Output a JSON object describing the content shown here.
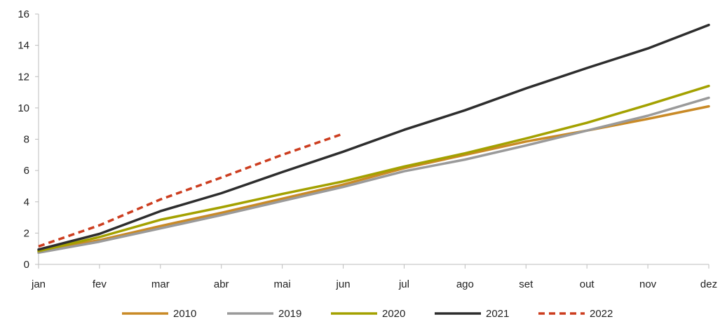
{
  "chart_data": {
    "type": "line",
    "title": "",
    "xlabel": "",
    "ylabel": "",
    "categories": [
      "jan",
      "fev",
      "mar",
      "abr",
      "mai",
      "jun",
      "jul",
      "ago",
      "set",
      "out",
      "nov",
      "dez"
    ],
    "ylim": [
      0,
      16
    ],
    "yticks": [
      "0",
      "2",
      "4",
      "6",
      "8",
      "10",
      "12",
      "14",
      "16"
    ],
    "grid": false,
    "legend_position": "bottom",
    "series": [
      {
        "name": "2010",
        "color": "#c98a26",
        "style": "solid",
        "values": [
          0.85,
          1.55,
          2.45,
          3.3,
          4.2,
          5.1,
          6.15,
          7.0,
          7.85,
          8.55,
          9.3,
          10.1
        ]
      },
      {
        "name": "2019",
        "color": "#9a9a9a",
        "style": "solid",
        "values": [
          0.75,
          1.45,
          2.3,
          3.15,
          4.05,
          4.95,
          5.95,
          6.7,
          7.6,
          8.55,
          9.5,
          10.65
        ]
      },
      {
        "name": "2020",
        "color": "#a3a100",
        "style": "solid",
        "values": [
          0.85,
          1.75,
          2.85,
          3.65,
          4.5,
          5.3,
          6.25,
          7.1,
          8.05,
          9.05,
          10.2,
          11.4
        ]
      },
      {
        "name": "2021",
        "color": "#2d2d2d",
        "style": "solid",
        "values": [
          0.95,
          1.95,
          3.4,
          4.55,
          5.9,
          7.2,
          8.6,
          9.85,
          11.25,
          12.55,
          13.8,
          15.3
        ]
      },
      {
        "name": "2022",
        "color": "#cc3d1f",
        "style": "dashed",
        "values": [
          1.15,
          2.5,
          4.15,
          5.55,
          7.0,
          8.35,
          null,
          null,
          null,
          null,
          null,
          null
        ]
      }
    ]
  }
}
